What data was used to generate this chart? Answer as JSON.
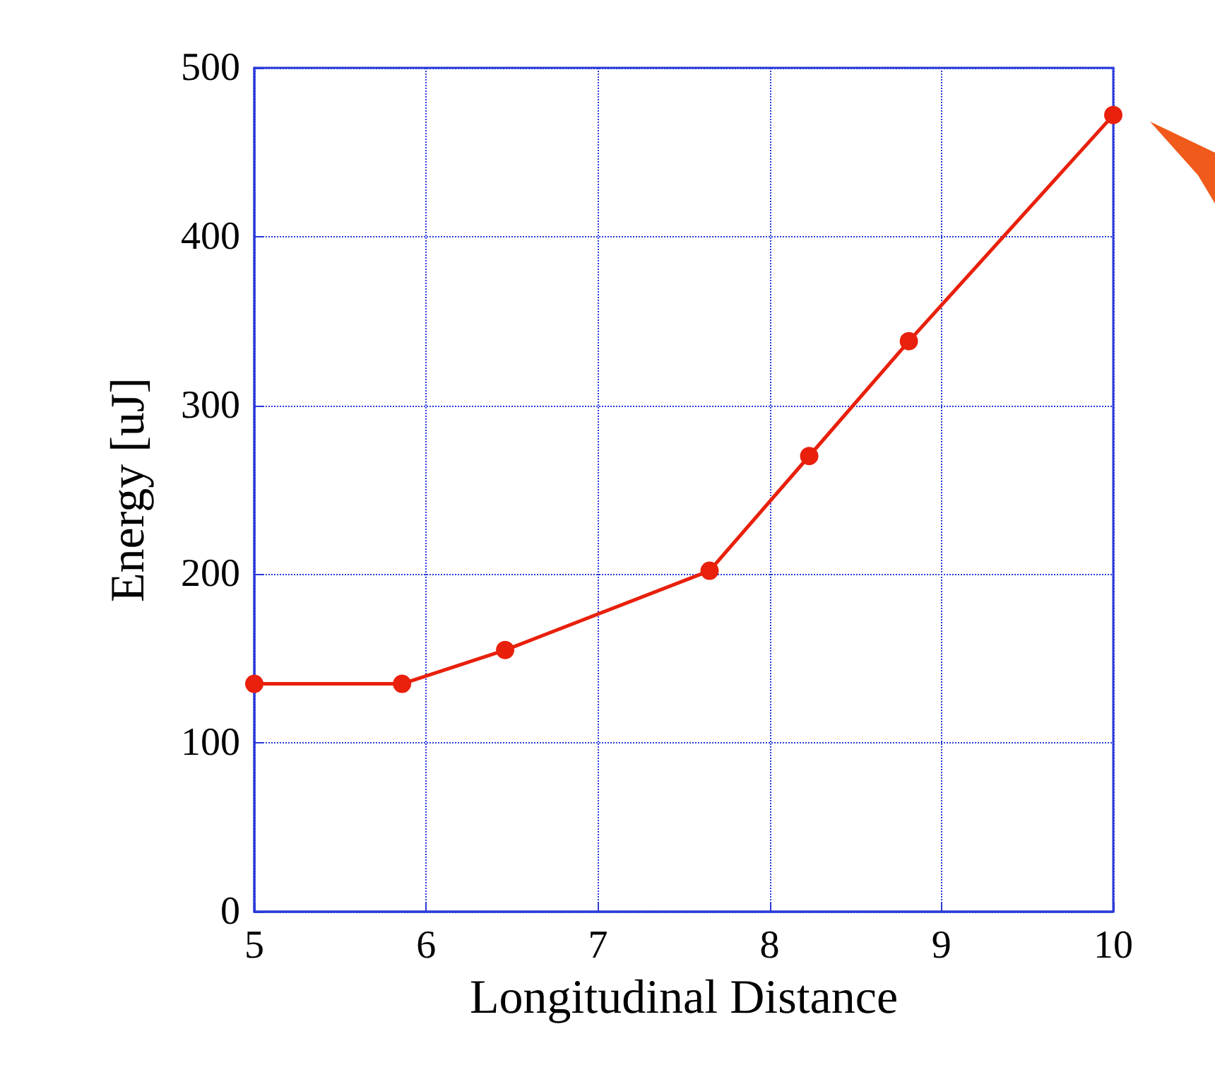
{
  "chart_data": {
    "type": "line",
    "xlabel": "Longitudinal Distance",
    "ylabel": "Energy [uJ]",
    "x": [
      5,
      5.86,
      6.46,
      7.65,
      8.23,
      8.81,
      10
    ],
    "series": [
      {
        "color": "#e8200c",
        "values": [
          135,
          135,
          155,
          202,
          270,
          338,
          472
        ]
      }
    ],
    "xlim": [
      5,
      10
    ],
    "xticks": [
      5,
      6,
      7,
      8,
      9,
      10
    ],
    "ylim": [
      0,
      500
    ],
    "yticks": [
      0,
      100,
      200,
      300,
      400,
      500
    ],
    "grid": true,
    "marker": "circle",
    "line_style": "solid"
  }
}
